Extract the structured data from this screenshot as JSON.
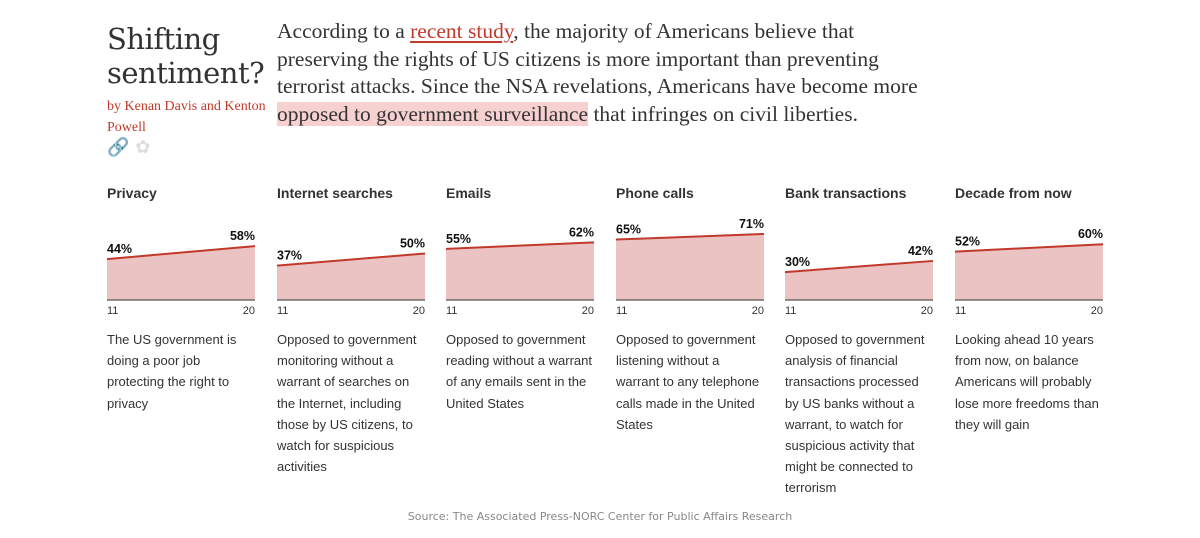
{
  "header": {
    "title": "Shifting sentiment?",
    "byline": "by Kenan Davis and Kenton Powell",
    "share_icons": [
      "link-icon",
      "twitter-icon"
    ]
  },
  "intro": {
    "before_link": "According to a ",
    "link_text": "recent study",
    "after_link": ", the majority of Americans believe that preserving the rights of US citizens is more important than preventing terrorist attacks. Since the NSA revelations, Americans have become more ",
    "highlight": "opposed to government surveillance",
    "after_highlight": " that infringes on civil liberties."
  },
  "colors": {
    "line": "#c0392b",
    "area": "#ebc3c3",
    "accent": "#c0392b",
    "highlight": "#f7d0d0"
  },
  "chart_data": [
    {
      "type": "area",
      "title": "Privacy",
      "x": [
        "11",
        "20"
      ],
      "values": [
        44,
        58
      ],
      "labels": [
        "44%",
        "58%"
      ],
      "ylim": [
        0,
        100
      ],
      "description": "The US government is doing a poor job protecting the right to privacy"
    },
    {
      "type": "area",
      "title": "Internet searches",
      "x": [
        "11",
        "20"
      ],
      "values": [
        37,
        50
      ],
      "labels": [
        "37%",
        "50%"
      ],
      "ylim": [
        0,
        100
      ],
      "description": "Opposed to government monitoring without a warrant of searches on the Internet, including those by US citizens, to watch for suspicious activities"
    },
    {
      "type": "area",
      "title": "Emails",
      "x": [
        "11",
        "20"
      ],
      "values": [
        55,
        62
      ],
      "labels": [
        "55%",
        "62%"
      ],
      "ylim": [
        0,
        100
      ],
      "description": "Opposed to government reading without a warrant of any emails sent in the United States"
    },
    {
      "type": "area",
      "title": "Phone calls",
      "x": [
        "11",
        "20"
      ],
      "values": [
        65,
        71
      ],
      "labels": [
        "65%",
        "71%"
      ],
      "ylim": [
        0,
        100
      ],
      "description": "Opposed to government listening without a warrant to any telephone calls made in the United States"
    },
    {
      "type": "area",
      "title": "Bank transactions",
      "x": [
        "11",
        "20"
      ],
      "values": [
        30,
        42
      ],
      "labels": [
        "30%",
        "42%"
      ],
      "ylim": [
        0,
        100
      ],
      "description": "Opposed to government analysis of financial transactions processed by US banks without a warrant, to watch for suspicious activity that might be connected to terrorism"
    },
    {
      "type": "area",
      "title": "Decade from now",
      "x": [
        "11",
        "20"
      ],
      "values": [
        52,
        60
      ],
      "labels": [
        "52%",
        "60%"
      ],
      "ylim": [
        0,
        100
      ],
      "description": "Looking ahead 10 years from now, on balance Americans will probably lose more freedoms than they will gain"
    }
  ],
  "source": "Source: The Associated Press-NORC Center for Public Affairs Research"
}
